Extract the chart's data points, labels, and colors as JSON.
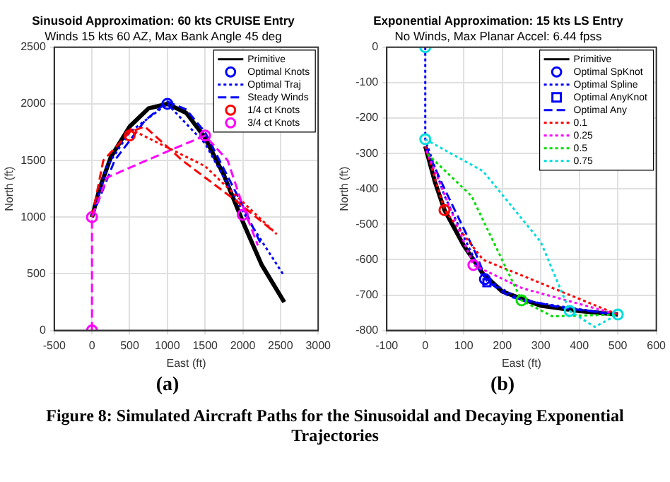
{
  "chart_data": [
    {
      "type": "line",
      "title": "Sinusoid Approximation: 60 kts CRUISE Entry",
      "subtitle": "Winds 15 kts 60 AZ, Max Bank Angle 45 deg",
      "xlabel": "East (ft)",
      "ylabel": "North (ft)",
      "xlim": [
        -500,
        3000
      ],
      "ylim": [
        0,
        2500
      ],
      "xticks": [
        -500,
        0,
        500,
        1000,
        1500,
        2000,
        2500,
        3000
      ],
      "yticks": [
        0,
        500,
        1000,
        1500,
        2000,
        2500
      ],
      "grid": true,
      "legend": "top right",
      "annotations": [
        "(a)"
      ],
      "series": [
        {
          "name": "Primitive",
          "type": "line",
          "color": "#000000",
          "line_style": "solid",
          "x": [
            0,
            100,
            250,
            500,
            750,
            1000,
            1250,
            1500,
            1750,
            2000,
            2250,
            2550
          ],
          "values": [
            1000,
            1250,
            1530,
            1800,
            1960,
            2000,
            1920,
            1700,
            1370,
            960,
            580,
            250
          ]
        },
        {
          "name": "Optimal Knots",
          "type": "scatter",
          "color": "#0000ff",
          "marker": "circle",
          "x": [
            1000
          ],
          "values": [
            2000
          ]
        },
        {
          "name": "Optimal Traj",
          "type": "line",
          "color": "#0000ff",
          "line_style": "dotted",
          "x": [
            0,
            200,
            500,
            1000,
            1500,
            2000,
            2550
          ],
          "values": [
            1000,
            1450,
            1750,
            2000,
            1650,
            1050,
            480
          ]
        },
        {
          "name": "Steady Winds",
          "type": "line",
          "color": "#0000ff",
          "line_style": "dashed",
          "x": [
            0,
            300,
            700,
            1000,
            1250,
            1500,
            2000,
            2250
          ],
          "values": [
            1000,
            1500,
            1850,
            2020,
            1950,
            1750,
            1100,
            750
          ]
        },
        {
          "name": "1/4 ct Knots",
          "type": "scatter",
          "color": "#ff0000",
          "marker": "circle",
          "x": [
            500
          ],
          "values": [
            1720
          ]
        },
        {
          "name": "3/4 ct Knots",
          "type": "scatter",
          "color": "#ff00ff",
          "marker": "circle",
          "x": [
            0,
            0,
            1500,
            2000
          ],
          "values": [
            0,
            1000,
            1720,
            1020
          ]
        },
        {
          "type": "line",
          "color": "#ff0000",
          "line_style": "dashed",
          "x": [
            0,
            150,
            500,
            700,
            1200,
            1900,
            2400
          ],
          "values": [
            1000,
            1500,
            1750,
            1800,
            1500,
            1150,
            880
          ]
        },
        {
          "type": "line",
          "color": "#ff0000",
          "line_style": "dotted",
          "x": [
            500,
            1500,
            2450
          ],
          "values": [
            1780,
            1450,
            850
          ]
        },
        {
          "type": "line",
          "color": "#ff00ff",
          "line_style": "dashed",
          "x": [
            0,
            0,
            200,
            1000,
            1500,
            1800,
            2000,
            2200
          ],
          "values": [
            0,
            1000,
            1350,
            1580,
            1720,
            1500,
            1100,
            750
          ]
        }
      ]
    },
    {
      "type": "line",
      "title": "Exponential Approximation: 15 kts LS Entry",
      "subtitle": "No Winds, Max Planar Accel: 6.44 fpss",
      "xlabel": "East (ft)",
      "ylabel": "North (ft)",
      "xlim": [
        -100,
        600
      ],
      "ylim": [
        -800,
        0
      ],
      "xticks": [
        -100,
        0,
        100,
        200,
        300,
        400,
        500,
        600
      ],
      "yticks": [
        -800,
        -700,
        -600,
        -500,
        -400,
        -300,
        -200,
        -100,
        0
      ],
      "grid": true,
      "legend": "top right",
      "annotations": [
        "(b)",
        "Figure 8: Simulated Aircraft Paths for the Sinusoidal and Decaying Exponential Trajectories"
      ],
      "series": [
        {
          "name": "Primitive",
          "type": "line",
          "color": "#000000",
          "line_style": "solid",
          "x": [
            0,
            25,
            50,
            100,
            150,
            200,
            300,
            400,
            500
          ],
          "values": [
            -280,
            -380,
            -460,
            -560,
            -640,
            -690,
            -730,
            -745,
            -755
          ]
        },
        {
          "name": "Optimal SpKnot",
          "type": "scatter",
          "color": "#0000ff",
          "marker": "circle",
          "x": [
            155
          ],
          "values": [
            -655
          ]
        },
        {
          "name": "Optimal Spline",
          "type": "line",
          "color": "#0000ff",
          "line_style": "dotted",
          "x": [
            0,
            0,
            50,
            150,
            250,
            400,
            500
          ],
          "values": [
            0,
            -260,
            -420,
            -650,
            -715,
            -740,
            -755
          ]
        },
        {
          "name": "Optimal AnyKnot",
          "type": "scatter",
          "color": "#0000ff",
          "marker": "square",
          "x": [
            160
          ],
          "values": [
            -665
          ]
        },
        {
          "name": "Optimal Any",
          "type": "line",
          "color": "#0000ff",
          "line_style": "dashed",
          "x": [
            0,
            50,
            130,
            160,
            220,
            350,
            500
          ],
          "values": [
            -280,
            -400,
            -580,
            -660,
            -705,
            -735,
            -755
          ]
        },
        {
          "name": "0.1",
          "type": "line",
          "color": "#ff0000",
          "line_style": "dotted",
          "x": [
            0,
            50,
            150,
            500
          ],
          "values": [
            -280,
            -460,
            -600,
            -755
          ]
        },
        {
          "name": "0.25",
          "type": "line",
          "color": "#ff00ff",
          "line_style": "dotted",
          "x": [
            3,
            125,
            250,
            500
          ],
          "values": [
            -292,
            -615,
            -680,
            -755
          ]
        },
        {
          "name": "0.5",
          "type": "line",
          "color": "#00dd00",
          "line_style": "dotted",
          "x": [
            6,
            120,
            250,
            330,
            500
          ],
          "values": [
            -302,
            -420,
            -715,
            -760,
            -755
          ]
        },
        {
          "name": "0.75",
          "type": "line",
          "color": "#00dddd",
          "line_style": "dotted",
          "x": [
            0,
            150,
            300,
            375,
            440,
            500
          ],
          "values": [
            -260,
            -350,
            -550,
            -745,
            -790,
            -755
          ]
        },
        {
          "type": "scatter",
          "color": "#ff0000",
          "marker": "circle",
          "x": [
            50
          ],
          "values": [
            -460
          ]
        },
        {
          "type": "scatter",
          "color": "#ff00ff",
          "marker": "circle",
          "x": [
            125
          ],
          "values": [
            -615
          ]
        },
        {
          "type": "scatter",
          "color": "#00dd00",
          "marker": "circle",
          "x": [
            250
          ],
          "values": [
            -715
          ]
        },
        {
          "type": "scatter",
          "color": "#00dddd",
          "marker": "circle",
          "x": [
            0,
            0,
            375,
            500
          ],
          "values": [
            0,
            -260,
            -745,
            -755
          ]
        }
      ]
    }
  ]
}
